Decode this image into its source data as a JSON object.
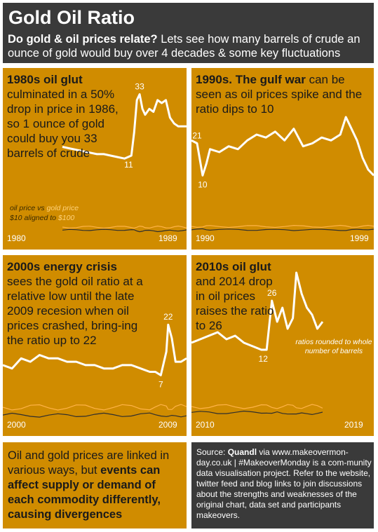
{
  "header": {
    "title": "Gold Oil Ratio",
    "subtitle_bold": "Do gold & oil prices relate?",
    "subtitle_rest": " Lets see how many barrels of crude an ounce of gold would buy over 4 decades & some key fluctuations"
  },
  "panels": [
    {
      "heading": "1980s oil glut",
      "text": "culminated in a 50% drop in price in 1986, so 1 ounce of gold could buy you 33 barrels of crude",
      "start_year": "1980",
      "end_year": "1989",
      "legend_line1_oil": "oil price",
      "legend_line1_vs": " vs ",
      "legend_line1_gold": "gold price",
      "legend_line2_oil": "$10",
      "legend_line2_mid": " aligned to ",
      "legend_line2_gold": "$100"
    },
    {
      "heading": "1990s. The gulf war",
      "text": " can be seen as oil prices spike and the ratio dips to 10",
      "start_year": "1990",
      "end_year": "1999"
    },
    {
      "heading": "2000s energy crisis",
      "text": "sees the gold oil ratio at a relative low until the late 2009 recesion when oil prices crashed, bring-ing the ratio up to 22",
      "start_year": "2000",
      "end_year": "2009"
    },
    {
      "heading": "2010s oil glut",
      "text": "and 2014 drop in oil prices raises the ratio to 26",
      "start_year": "2010",
      "end_year": "2019",
      "note": "ratios rounded to whole number of barrels"
    }
  ],
  "footer_left": {
    "text_plain": "Oil and gold prices are linked in various ways, but ",
    "text_bold": "events can affect supply or demand of each commodity differently, causing divergences"
  },
  "footer_right": {
    "source_label": "Source: ",
    "source_name": "Quandl",
    "text": " via www.makeovermon-day.co.uk | #MakeoverMonday is a com-munity data visualisation project. Refer to the website, twitter feed and blog links to join discussions about the strengths and weaknesses of the original chart, data set and participants makeovers."
  },
  "colors": {
    "panel": "#d08c00",
    "dark": "#3a3a3a",
    "ratio_line": "#ffffff",
    "oil_line": "#2e2e2e",
    "gold_line": "#ffb347"
  },
  "chart_data": [
    {
      "type": "line",
      "title": "1980s oil glut",
      "x": [
        1981.0,
        1981.5,
        1982.0,
        1982.5,
        1983.0,
        1983.5,
        1984.0,
        1984.5,
        1985.0,
        1985.5,
        1986.0,
        1986.2,
        1986.4,
        1986.6,
        1986.8,
        1987.0,
        1987.3,
        1987.6,
        1987.9,
        1988.2,
        1988.5,
        1988.8,
        1989.1,
        1989.4,
        1989.7,
        1990.0
      ],
      "ratio": [
        15,
        14.5,
        14,
        13.5,
        13,
        12.5,
        12.5,
        12,
        11.5,
        11,
        12,
        20,
        31,
        33,
        28,
        26,
        28,
        27,
        31,
        30,
        31,
        25,
        23,
        22,
        22,
        22
      ],
      "annotations": [
        {
          "x": 1986.6,
          "label": "33"
        },
        {
          "x": 1985.8,
          "label": "11"
        }
      ]
    },
    {
      "type": "line",
      "title": "1990s. The gulf war",
      "x": [
        1990.0,
        1990.3,
        1990.6,
        1990.8,
        1991.0,
        1991.5,
        1992.0,
        1992.5,
        1993.0,
        1993.5,
        1994.0,
        1994.5,
        1995.0,
        1995.5,
        1996.0,
        1996.5,
        1997.0,
        1997.5,
        1998.0,
        1998.3,
        1998.6,
        1998.9,
        1999.2,
        1999.5,
        1999.8
      ],
      "ratio": [
        22,
        21,
        10,
        14,
        19,
        18,
        20,
        19,
        22,
        24,
        23,
        25,
        22,
        26,
        20,
        21,
        23,
        22,
        24,
        30,
        26,
        22,
        16,
        12,
        10
      ],
      "annotations": [
        {
          "x": 1990.3,
          "label": "21"
        },
        {
          "x": 1990.6,
          "label": "10"
        }
      ]
    },
    {
      "type": "line",
      "title": "2000s energy crisis",
      "x": [
        2000.0,
        2000.5,
        2001.0,
        2001.5,
        2002.0,
        2002.5,
        2003.0,
        2003.5,
        2004.0,
        2004.5,
        2005.0,
        2005.5,
        2006.0,
        2006.5,
        2007.0,
        2007.5,
        2008.0,
        2008.3,
        2008.6,
        2008.9,
        2009.0,
        2009.2,
        2009.4,
        2009.7,
        2010.0
      ],
      "ratio": [
        10,
        9,
        12,
        11,
        13,
        12,
        12,
        11,
        11,
        10,
        10,
        9,
        9,
        10,
        10,
        9,
        8,
        8,
        7,
        14,
        22,
        18,
        11,
        11,
        12
      ],
      "annotations": [
        {
          "x": 2009.0,
          "label": "22"
        },
        {
          "x": 2008.6,
          "label": "7"
        }
      ]
    },
    {
      "type": "line",
      "title": "2010s oil glut",
      "x": [
        2010.0,
        2010.5,
        2011.0,
        2011.5,
        2012.0,
        2012.5,
        2013.0,
        2013.5,
        2014.0,
        2014.3,
        2014.6,
        2014.9,
        2015.2,
        2015.5,
        2015.8,
        2016.0,
        2016.3,
        2016.6,
        2016.9,
        2017.2,
        2017.5
      ],
      "ratio": [
        14,
        15,
        16,
        17,
        15,
        16,
        14,
        13,
        12,
        12,
        26,
        20,
        24,
        18,
        21,
        34,
        28,
        24,
        22,
        18,
        20
      ],
      "annotations": [
        {
          "x": 2014.6,
          "label": "26"
        },
        {
          "x": 2014.1,
          "label": "12"
        }
      ]
    }
  ]
}
